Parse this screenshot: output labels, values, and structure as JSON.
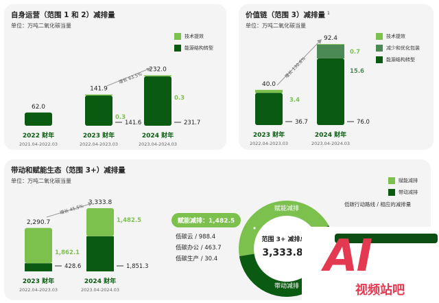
{
  "colors": {
    "dark": "#0b5a12",
    "light": "#7cc04e",
    "mid": "#4c8a55",
    "arrow": "#9a9a9a"
  },
  "panel1": {
    "title": "自身运营（范围 1 和 2）减排量",
    "unit": "单位：万吨二氧化碳当量",
    "legend": [
      {
        "label": "技术提效",
        "color": "#7cc04e"
      },
      {
        "label": "能源结构转型",
        "color": "#0b5a12"
      }
    ],
    "growth1": "增长 63.5%",
    "growth2": ""
  },
  "panel2": {
    "title": "价值链（范围 3）减排量",
    "title_sup": "1",
    "unit": "单位：万吨二氧化碳当量",
    "legend": [
      {
        "label": "技术提效",
        "color": "#7cc04e"
      },
      {
        "label": "减少和优化包装",
        "color": "#4c8a55"
      },
      {
        "label": "能源结构转型",
        "color": "#0b5a12"
      }
    ],
    "growth": "增长 130.8%"
  },
  "panel3": {
    "title": "带动和赋能生态（范围 3+）减排量",
    "unit": "单位：万吨二氧化碳当量",
    "legend": [
      {
        "label": "赋能减排",
        "color": "#7cc04e"
      },
      {
        "label": "带动减排",
        "color": "#0b5a12"
      }
    ],
    "growth": "增长 45.5%",
    "roadmap": "低碳行动路线 / 相应的减排量",
    "pill": "赋能减排：1,482.5",
    "sublist": [
      "低碳云 / 988.4",
      "低碳办公 / 463.7",
      "低碳生产 / 30.4"
    ],
    "donut_top": "赋能减排",
    "donut_bottom": "带动减排",
    "donut_center_label": "范围 3+ 减排总",
    "donut_center_value": "3,333.8"
  },
  "watermark": {
    "big": "AI",
    "small": "视频站吧"
  },
  "chart_data": [
    {
      "type": "bar",
      "title": "自身运营（范围 1 和 2）减排量",
      "ylabel": "",
      "categories": [
        "2022 财年",
        "2023 财年",
        "2024 财年"
      ],
      "periods": [
        "2021.04-2022.03",
        "2022.04-2023.03",
        "2023.04-2024.03"
      ],
      "totals": [
        62.0,
        141.9,
        232.0
      ],
      "total_labels": [
        "62.0",
        "141.9",
        "232.0"
      ],
      "series": [
        {
          "name": "能源结构转型",
          "values": [
            62.0,
            141.6,
            231.7
          ],
          "labels": [
            "",
            "141.6",
            "231.7"
          ]
        },
        {
          "name": "技术提效",
          "values": [
            0,
            0.3,
            0.3
          ],
          "labels": [
            "",
            "0.3",
            "0.3"
          ]
        }
      ],
      "ylim": [
        0,
        240
      ]
    },
    {
      "type": "bar",
      "title": "价值链（范围 3）减排量",
      "categories": [
        "2023 财年",
        "2024 财年"
      ],
      "periods": [
        "2022.04-2023.03",
        "2023.04-2024.03"
      ],
      "totals": [
        40.0,
        92.4
      ],
      "total_labels": [
        "40.0",
        "92.4"
      ],
      "series": [
        {
          "name": "能源结构转型",
          "values": [
            36.7,
            76.0
          ],
          "labels": [
            "36.7",
            "76.0"
          ]
        },
        {
          "name": "减少和优化包装",
          "values": [
            0,
            15.6
          ],
          "labels": [
            "",
            "15.6"
          ]
        },
        {
          "name": "技术提效",
          "values": [
            3.4,
            0.7
          ],
          "labels": [
            "3.4",
            "0.7"
          ]
        }
      ],
      "ylim": [
        0,
        95
      ]
    },
    {
      "type": "bar",
      "title": "带动和赋能生态（范围 3+）减排量",
      "categories": [
        "2023 财年",
        "2024 财年"
      ],
      "periods": [
        "2022.04-2023.03",
        "2023.04-2024.03"
      ],
      "totals": [
        2290.7,
        3333.8
      ],
      "total_labels": [
        "2,290.7",
        "3,333.8"
      ],
      "series": [
        {
          "name": "带动减排",
          "values": [
            428.6,
            1851.3
          ],
          "labels": [
            "428.6",
            "1,851.3"
          ]
        },
        {
          "name": "赋能减排",
          "values": [
            1862.1,
            1482.5
          ],
          "labels": [
            "1,862.1",
            "1,482.5"
          ]
        }
      ],
      "ylim": [
        0,
        3400
      ]
    },
    {
      "type": "pie",
      "title": "",
      "labels": [
        "赋能减排",
        "带动减排"
      ],
      "values": [
        1482.5,
        1851.3
      ],
      "total": 3333.8
    }
  ]
}
